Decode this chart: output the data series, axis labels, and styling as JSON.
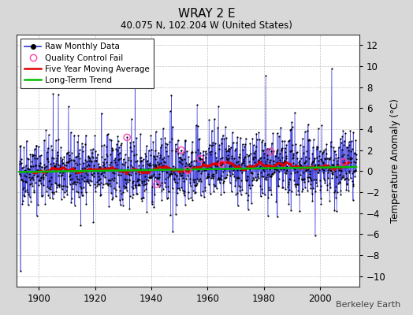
{
  "title": "WRAY 2 E",
  "subtitle": "40.075 N, 102.204 W (United States)",
  "ylabel": "Temperature Anomaly (°C)",
  "attribution": "Berkeley Earth",
  "year_start": 1893,
  "year_end": 2013,
  "ylim": [
    -11,
    13
  ],
  "yticks": [
    -10,
    -8,
    -6,
    -4,
    -2,
    0,
    2,
    4,
    6,
    8,
    10,
    12
  ],
  "xticks": [
    1900,
    1920,
    1940,
    1960,
    1980,
    2000
  ],
  "raw_line_color": "#3333cc",
  "raw_stem_color": "#6666ff",
  "raw_stem_alpha": 0.5,
  "dot_color": "#000000",
  "qc_color": "#ff44aa",
  "mavg_color": "#dd0000",
  "trend_color": "#00bb00",
  "background_color": "#d8d8d8",
  "plot_bg_color": "#ffffff",
  "grid_color": "#aaaaaa",
  "seed": 42,
  "trend_slope": 0.004,
  "trend_intercept": 0.15,
  "n_qc": 8
}
